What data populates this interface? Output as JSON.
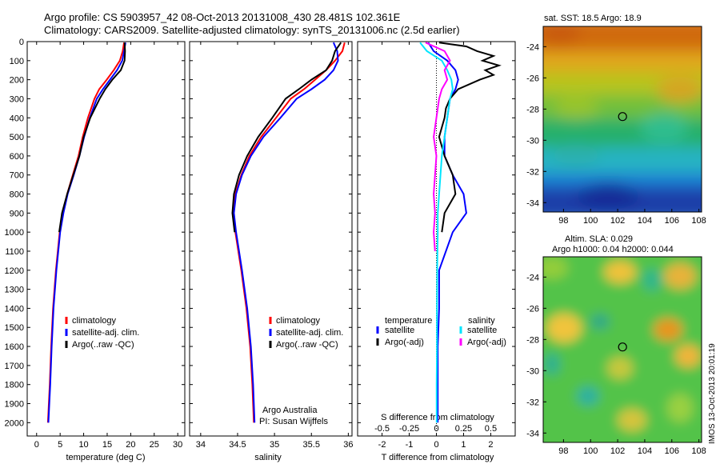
{
  "title_line1": "Argo profile: CS 5903957_42 08-Oct-2013 20131008_430 28.481S 102.361E",
  "title_line2": "Climatology: CARS2009. Satellite-adjusted climatology: synTS_20131006.nc (2.5d earlier)",
  "side_stamp": "IMOS 13-Oct-2013 20:01:19",
  "depth_ticks": [
    0,
    100,
    200,
    300,
    400,
    500,
    600,
    700,
    800,
    900,
    1000,
    1100,
    1200,
    1300,
    1400,
    1500,
    1600,
    1700,
    1800,
    1900,
    2000
  ],
  "colors": {
    "climatology": "#ff0000",
    "satellite": "#0000ff",
    "argo": "#000000",
    "sal_satellite": "#00e5ff",
    "sal_argo": "#ff00ff"
  },
  "chart_data": [
    {
      "type": "line",
      "panel": "temperature",
      "xlabel": "temperature (deg C)",
      "xticks": [
        0,
        5,
        10,
        15,
        20,
        25,
        30
      ],
      "xlim": [
        -2,
        31.5
      ],
      "ylim": [
        2070,
        0
      ],
      "legend": [
        "climatology",
        "satellite-adj. clim.",
        "Argo(..raw -QC)"
      ],
      "series": [
        {
          "name": "climatology",
          "color": "#ff0000",
          "depth": [
            5,
            50,
            100,
            150,
            200,
            250,
            300,
            400,
            500,
            600,
            700,
            800,
            900,
            1000,
            1200,
            1400,
            1600,
            1800,
            2000
          ],
          "values": [
            18.6,
            18.3,
            17.7,
            16.4,
            14.9,
            13.3,
            12.3,
            10.9,
            9.8,
            8.9,
            7.7,
            6.5,
            5.6,
            4.9,
            4.1,
            3.5,
            3.1,
            2.8,
            2.4
          ]
        },
        {
          "name": "satellite-adj. clim.",
          "color": "#0000ff",
          "depth": [
            5,
            50,
            100,
            150,
            200,
            250,
            300,
            400,
            500,
            600,
            700,
            800,
            900,
            1000,
            1200,
            1400,
            1600,
            1800,
            2000
          ],
          "values": [
            18.9,
            18.6,
            18.2,
            17.1,
            15.6,
            14.1,
            12.8,
            11.3,
            10.1,
            9.1,
            7.9,
            6.6,
            5.7,
            5.0,
            4.2,
            3.6,
            3.2,
            2.9,
            2.5
          ]
        },
        {
          "name": "Argo(..raw -QC)",
          "color": "#000000",
          "depth": [
            5,
            50,
            100,
            150,
            200,
            250,
            300,
            400,
            500,
            600,
            700,
            800,
            900,
            1000
          ],
          "values": [
            18.7,
            18.8,
            18.7,
            17.9,
            16.1,
            14.6,
            13.4,
            11.4,
            10.0,
            9.1,
            7.8,
            6.5,
            5.4,
            4.8
          ]
        }
      ]
    },
    {
      "type": "line",
      "panel": "salinity",
      "xlabel": "salinity",
      "xticks": [
        34,
        34.5,
        35,
        35.5,
        36
      ],
      "xlim": [
        33.85,
        36.05
      ],
      "ylim": [
        2070,
        0
      ],
      "legend": [
        "climatology",
        "satellite-adj. clim.",
        "Argo(..raw -QC)"
      ],
      "credit_1": "Argo Australia",
      "credit_2": "PI: Susan Wijffels",
      "series": [
        {
          "name": "climatology",
          "color": "#ff0000",
          "depth": [
            5,
            50,
            100,
            150,
            200,
            250,
            300,
            400,
            500,
            600,
            700,
            800,
            900,
            1000,
            1200,
            1400,
            1600,
            1800,
            2000
          ],
          "values": [
            35.95,
            35.92,
            35.82,
            35.7,
            35.55,
            35.4,
            35.22,
            35.02,
            34.82,
            34.66,
            34.55,
            34.47,
            34.44,
            34.47,
            34.55,
            34.62,
            34.67,
            34.7,
            34.72
          ]
        },
        {
          "name": "satellite-adj. clim.",
          "color": "#0000ff",
          "depth": [
            5,
            50,
            100,
            150,
            200,
            250,
            300,
            400,
            500,
            600,
            700,
            800,
            900,
            1000,
            1200,
            1400,
            1600,
            1800,
            2000
          ],
          "values": [
            35.8,
            35.85,
            35.86,
            35.8,
            35.68,
            35.5,
            35.3,
            35.08,
            34.85,
            34.68,
            34.56,
            34.48,
            34.45,
            34.48,
            34.56,
            34.63,
            34.68,
            34.71,
            34.73
          ]
        },
        {
          "name": "Argo(..raw -QC)",
          "color": "#000000",
          "depth": [
            5,
            50,
            100,
            150,
            200,
            250,
            300,
            400,
            500,
            600,
            700,
            800,
            900,
            1000
          ],
          "values": [
            35.9,
            35.82,
            35.78,
            35.7,
            35.5,
            35.33,
            35.15,
            34.97,
            34.78,
            34.63,
            34.52,
            34.45,
            34.43,
            34.46
          ]
        }
      ]
    },
    {
      "type": "line",
      "panel": "difference",
      "xlabel": "T difference from climatology",
      "xlabel_top": "S difference from climatology",
      "xticks": [
        "-2",
        "-1",
        "0",
        "1",
        "2"
      ],
      "xticks_s": [
        "-0.5",
        "-0.25",
        "0",
        "0.25",
        "0.5"
      ],
      "xlim": [
        -2.9,
        2.9
      ],
      "ylim": [
        2070,
        0
      ],
      "legend_title_t": "temperature",
      "legend_title_s": "salinity",
      "legend_t": [
        "satellite",
        "Argo(-adj)"
      ],
      "legend_s": [
        "satellite",
        "Argo(-adj)"
      ],
      "series": [
        {
          "name": "T satellite",
          "color": "#0000ff",
          "depth": [
            5,
            50,
            100,
            150,
            200,
            250,
            300,
            400,
            500,
            600,
            700,
            800,
            900,
            1000,
            1200,
            1400,
            1600,
            1800,
            2000
          ],
          "values": [
            -0.3,
            -0.1,
            0.4,
            0.7,
            0.8,
            0.7,
            0.5,
            0.4,
            0.3,
            0.3,
            0.6,
            1.0,
            1.1,
            0.6,
            0.1,
            0.1,
            0.05,
            0.05,
            0.05
          ]
        },
        {
          "name": "T Argo(-adj)",
          "color": "#000000",
          "depth": [
            5,
            25,
            50,
            75,
            100,
            125,
            150,
            175,
            200,
            250,
            300,
            350,
            400,
            450,
            500,
            600,
            700,
            800,
            900,
            1000
          ],
          "values": [
            0.1,
            1.1,
            1.5,
            2.1,
            1.7,
            2.3,
            1.8,
            2.1,
            1.6,
            0.8,
            0.5,
            0.35,
            0.3,
            0.2,
            0.1,
            0.3,
            0.6,
            0.7,
            0.3,
            0.2
          ]
        },
        {
          "name": "S satellite",
          "color": "#00e5ff",
          "depth": [
            5,
            50,
            100,
            150,
            200,
            250,
            300,
            400,
            500,
            600,
            700,
            800,
            900,
            1000,
            1200,
            1400,
            1600,
            1800,
            2000
          ],
          "values": [
            -0.6,
            -0.35,
            0.2,
            0.4,
            0.55,
            0.6,
            0.5,
            0.4,
            0.3,
            0.2,
            0.15,
            0.1,
            0.05,
            0.05,
            0.03,
            0.02,
            0.02,
            0.01,
            0.01
          ]
        },
        {
          "name": "S Argo(-adj)",
          "color": "#ff00ff",
          "depth": [
            5,
            50,
            100,
            150,
            200,
            250,
            300,
            400,
            500,
            600,
            700,
            800,
            900,
            1000,
            1100
          ],
          "values": [
            -0.4,
            0.3,
            0.5,
            0.3,
            0.4,
            0.2,
            0.1,
            0.0,
            -0.1,
            0.0,
            -0.05,
            -0.1,
            -0.05,
            -0.1,
            -0.05
          ]
        }
      ]
    },
    {
      "type": "heatmap",
      "panel": "sst_map",
      "title": "sat. SST: 18.5 Argo: 18.9",
      "xticks": [
        98,
        100,
        102,
        104,
        106,
        108
      ],
      "yticks": [
        -24,
        -26,
        -28,
        -30,
        -32,
        -34
      ],
      "xlim": [
        96.5,
        108.2
      ],
      "ylim": [
        -34.6,
        -22.7
      ],
      "marker": {
        "lon": 102.361,
        "lat": -28.481
      }
    },
    {
      "type": "heatmap",
      "panel": "sla_map",
      "title": "Altim. SLA: 0.029",
      "subtitle": "Argo h1000: 0.04 h2000: 0.044",
      "xticks": [
        98,
        100,
        102,
        104,
        106,
        108
      ],
      "yticks": [
        -24,
        -26,
        -28,
        -30,
        -32,
        -34
      ],
      "xlim": [
        96.5,
        108.2
      ],
      "ylim": [
        -34.6,
        -22.7
      ],
      "marker": {
        "lon": 102.361,
        "lat": -28.481
      }
    }
  ]
}
